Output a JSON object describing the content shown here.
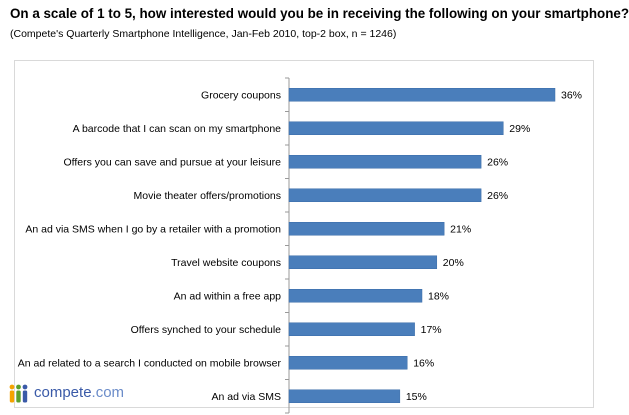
{
  "title": "On a scale of 1 to 5, how interested would you be in receiving the following on your smartphone?",
  "subtitle": "(Compete's Quarterly Smartphone Intelligence, Jan-Feb 2010, top-2 box, n = 1246)",
  "logo": {
    "brand": "compete",
    "suffix": ".com"
  },
  "colors": {
    "bar": "#4a7ebb",
    "bar_edge": "#3b6ca8",
    "axis": "#999999",
    "frame": "#d9d9d9"
  },
  "chart_data": {
    "type": "bar",
    "orientation": "horizontal",
    "categories": [
      "Grocery coupons",
      "A barcode that I can scan on my smartphone",
      "Offers you can save and pursue at your leisure",
      "Movie theater offers/promotions",
      "An ad via SMS when I go by a retailer with a promotion",
      "Travel website coupons",
      "An ad within a free app",
      "Offers synched to your schedule",
      "An ad related to a search I conducted on mobile browser",
      "An ad via SMS"
    ],
    "values": [
      36,
      29,
      26,
      26,
      21,
      20,
      18,
      17,
      16,
      15
    ],
    "value_labels": [
      "36%",
      "29%",
      "26%",
      "26%",
      "21%",
      "20%",
      "18%",
      "17%",
      "16%",
      "15%"
    ],
    "unit": "%",
    "xlim": [
      0,
      40
    ],
    "grid": false,
    "legend": "none"
  }
}
